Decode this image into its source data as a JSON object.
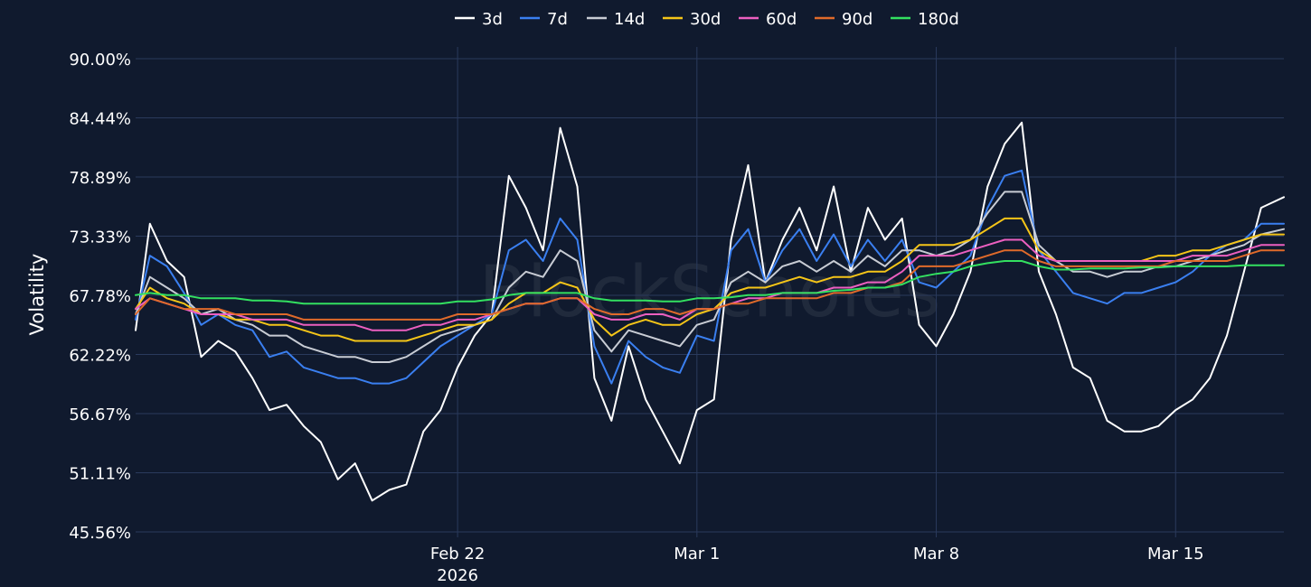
{
  "legend": [
    "3d",
    "7d",
    "14d",
    "30d",
    "60d",
    "90d",
    "180d"
  ],
  "watermark": "BlockScholes",
  "chart_data": {
    "type": "line",
    "xlabel": "",
    "ylabel": "Volatility",
    "x_axis_type": "date",
    "xlim": [
      "2026-02-12 14:00",
      "2026-03-18 04:00"
    ],
    "ylim": [
      45.56,
      90.0
    ],
    "y_ticks": [
      "45.56%",
      "51.11%",
      "56.67%",
      "62.22%",
      "67.78%",
      "73.33%",
      "78.89%",
      "84.44%",
      "90.00%"
    ],
    "y_tick_values": [
      45.56,
      51.11,
      56.67,
      62.22,
      67.78,
      73.33,
      78.89,
      84.44,
      90.0
    ],
    "x_ticks": [
      {
        "date": "2026-02-22",
        "label": "Feb 22",
        "sublabel": "2026"
      },
      {
        "date": "2026-03-01",
        "label": "Mar 1",
        "sublabel": ""
      },
      {
        "date": "2026-03-08",
        "label": "Mar 8",
        "sublabel": ""
      },
      {
        "date": "2026-03-15",
        "label": "Mar 15",
        "sublabel": ""
      }
    ],
    "grid": true,
    "legend_position": "top-center",
    "x": [
      "2026-02-12 14:00",
      "2026-02-13 00:00",
      "2026-02-13 12:00",
      "2026-02-14 00:00",
      "2026-02-14 12:00",
      "2026-02-15 00:00",
      "2026-02-15 12:00",
      "2026-02-16 00:00",
      "2026-02-16 12:00",
      "2026-02-17 00:00",
      "2026-02-17 12:00",
      "2026-02-18 00:00",
      "2026-02-18 12:00",
      "2026-02-19 00:00",
      "2026-02-19 12:00",
      "2026-02-20 00:00",
      "2026-02-20 12:00",
      "2026-02-21 00:00",
      "2026-02-21 12:00",
      "2026-02-22 00:00",
      "2026-02-22 12:00",
      "2026-02-23 00:00",
      "2026-02-23 12:00",
      "2026-02-24 00:00",
      "2026-02-24 12:00",
      "2026-02-25 00:00",
      "2026-02-25 12:00",
      "2026-02-26 00:00",
      "2026-02-26 12:00",
      "2026-02-27 00:00",
      "2026-02-27 12:00",
      "2026-02-28 00:00",
      "2026-02-28 12:00",
      "2026-03-01 00:00",
      "2026-03-01 12:00",
      "2026-03-02 00:00",
      "2026-03-02 12:00",
      "2026-03-03 00:00",
      "2026-03-03 12:00",
      "2026-03-04 00:00",
      "2026-03-04 12:00",
      "2026-03-05 00:00",
      "2026-03-05 12:00",
      "2026-03-06 00:00",
      "2026-03-06 12:00",
      "2026-03-07 00:00",
      "2026-03-07 12:00",
      "2026-03-08 00:00",
      "2026-03-08 12:00",
      "2026-03-09 00:00",
      "2026-03-09 12:00",
      "2026-03-10 00:00",
      "2026-03-10 12:00",
      "2026-03-11 00:00",
      "2026-03-11 12:00",
      "2026-03-12 00:00",
      "2026-03-12 12:00",
      "2026-03-13 00:00",
      "2026-03-13 12:00",
      "2026-03-14 00:00",
      "2026-03-14 12:00",
      "2026-03-15 00:00",
      "2026-03-15 12:00",
      "2026-03-16 00:00",
      "2026-03-16 12:00",
      "2026-03-17 00:00",
      "2026-03-17 12:00",
      "2026-03-18 04:00"
    ],
    "series": [
      {
        "name": "3d",
        "color": "#ffffff",
        "values": [
          64.5,
          74.5,
          71.0,
          69.5,
          62.0,
          63.5,
          62.5,
          60.0,
          57.0,
          57.5,
          55.5,
          54.0,
          50.5,
          52.0,
          48.5,
          49.5,
          50.0,
          55.0,
          57.0,
          61.0,
          64.0,
          66.0,
          79.0,
          76.0,
          72.0,
          83.5,
          78.0,
          60.0,
          56.0,
          63.0,
          58.0,
          55.0,
          52.0,
          57.0,
          58.0,
          73.0,
          80.0,
          69.0,
          73.0,
          76.0,
          72.0,
          78.0,
          70.0,
          76.0,
          73.0,
          75.0,
          65.0,
          63.0,
          66.0,
          70.0,
          78.0,
          82.0,
          84.0,
          70.0,
          66.0,
          61.0,
          60.0,
          56.0,
          55.0,
          55.0,
          55.5,
          57.0,
          58.0,
          60.0,
          64.0,
          70.0,
          76.0,
          77.0
        ]
      },
      {
        "name": "7d",
        "color": "#3a7ff0",
        "values": [
          65.5,
          71.5,
          70.5,
          68.0,
          65.0,
          66.0,
          65.0,
          64.5,
          62.0,
          62.5,
          61.0,
          60.5,
          60.0,
          60.0,
          59.5,
          59.5,
          60.0,
          61.5,
          63.0,
          64.0,
          65.0,
          66.0,
          72.0,
          73.0,
          71.0,
          75.0,
          73.0,
          63.0,
          59.5,
          63.5,
          62.0,
          61.0,
          60.5,
          64.0,
          63.5,
          72.0,
          74.0,
          69.0,
          72.0,
          74.0,
          71.0,
          73.5,
          70.5,
          73.0,
          71.0,
          73.0,
          69.0,
          68.5,
          70.0,
          71.5,
          76.0,
          79.0,
          79.5,
          72.0,
          70.0,
          68.0,
          67.5,
          67.0,
          68.0,
          68.0,
          68.5,
          69.0,
          70.0,
          71.5,
          72.5,
          73.0,
          74.5,
          74.5
        ]
      },
      {
        "name": "14d",
        "color": "#c8ccd4",
        "values": [
          66.0,
          69.5,
          68.5,
          67.5,
          66.0,
          66.5,
          65.5,
          65.0,
          64.0,
          64.0,
          63.0,
          62.5,
          62.0,
          62.0,
          61.5,
          61.5,
          62.0,
          63.0,
          64.0,
          64.5,
          65.0,
          65.5,
          68.5,
          70.0,
          69.5,
          72.0,
          71.0,
          64.5,
          62.5,
          64.5,
          64.0,
          63.5,
          63.0,
          65.0,
          65.5,
          69.0,
          70.0,
          69.0,
          70.5,
          71.0,
          70.0,
          71.0,
          70.0,
          71.5,
          70.5,
          72.0,
          72.0,
          71.5,
          72.0,
          73.0,
          75.5,
          77.5,
          77.5,
          72.5,
          71.0,
          70.0,
          70.0,
          69.5,
          70.0,
          70.0,
          70.5,
          70.5,
          71.0,
          71.5,
          72.0,
          72.5,
          73.5,
          74.0
        ]
      },
      {
        "name": "30d",
        "color": "#f5c518",
        "values": [
          66.5,
          68.5,
          67.5,
          67.0,
          66.0,
          66.0,
          65.5,
          65.5,
          65.0,
          65.0,
          64.5,
          64.0,
          64.0,
          63.5,
          63.5,
          63.5,
          63.5,
          64.0,
          64.5,
          65.0,
          65.0,
          65.5,
          67.0,
          68.0,
          68.0,
          69.0,
          68.5,
          65.5,
          64.0,
          65.0,
          65.5,
          65.0,
          65.0,
          66.0,
          66.5,
          68.0,
          68.5,
          68.5,
          69.0,
          69.5,
          69.0,
          69.5,
          69.5,
          70.0,
          70.0,
          71.0,
          72.5,
          72.5,
          72.5,
          73.0,
          74.0,
          75.0,
          75.0,
          72.0,
          71.0,
          71.0,
          71.0,
          71.0,
          71.0,
          71.0,
          71.5,
          71.5,
          72.0,
          72.0,
          72.5,
          73.0,
          73.5,
          73.5
        ]
      },
      {
        "name": "60d",
        "color": "#ec5fc0",
        "values": [
          66.5,
          67.5,
          67.0,
          66.5,
          66.0,
          66.0,
          66.0,
          65.5,
          65.5,
          65.5,
          65.0,
          65.0,
          65.0,
          65.0,
          64.5,
          64.5,
          64.5,
          65.0,
          65.0,
          65.5,
          65.5,
          66.0,
          66.5,
          67.0,
          67.0,
          67.5,
          67.5,
          66.0,
          65.5,
          65.5,
          66.0,
          66.0,
          65.5,
          66.5,
          66.5,
          67.0,
          67.5,
          67.5,
          68.0,
          68.0,
          68.0,
          68.5,
          68.5,
          69.0,
          69.0,
          70.0,
          71.5,
          71.5,
          71.5,
          72.0,
          72.5,
          73.0,
          73.0,
          71.5,
          71.0,
          71.0,
          71.0,
          71.0,
          71.0,
          71.0,
          71.0,
          71.0,
          71.5,
          71.5,
          71.5,
          72.0,
          72.5,
          72.5
        ]
      },
      {
        "name": "90d",
        "color": "#e06a2a",
        "values": [
          66.0,
          67.5,
          67.0,
          66.5,
          66.5,
          66.5,
          66.0,
          66.0,
          66.0,
          66.0,
          65.5,
          65.5,
          65.5,
          65.5,
          65.5,
          65.5,
          65.5,
          65.5,
          65.5,
          66.0,
          66.0,
          66.0,
          66.5,
          67.0,
          67.0,
          67.5,
          67.5,
          66.5,
          66.0,
          66.0,
          66.5,
          66.5,
          66.0,
          66.5,
          66.5,
          67.0,
          67.0,
          67.5,
          67.5,
          67.5,
          67.5,
          68.0,
          68.0,
          68.5,
          68.5,
          69.0,
          70.5,
          70.5,
          70.5,
          71.0,
          71.5,
          72.0,
          72.0,
          71.0,
          70.5,
          70.5,
          70.5,
          70.5,
          70.5,
          70.5,
          70.5,
          71.0,
          71.0,
          71.0,
          71.0,
          71.5,
          72.0,
          72.0
        ]
      },
      {
        "name": "180d",
        "color": "#33e060",
        "values": [
          67.8,
          68.0,
          67.8,
          67.8,
          67.5,
          67.5,
          67.5,
          67.3,
          67.3,
          67.2,
          67.0,
          67.0,
          67.0,
          67.0,
          67.0,
          67.0,
          67.0,
          67.0,
          67.0,
          67.2,
          67.2,
          67.4,
          67.8,
          68.0,
          68.0,
          68.0,
          68.0,
          67.5,
          67.3,
          67.3,
          67.3,
          67.2,
          67.2,
          67.5,
          67.5,
          67.6,
          67.8,
          67.8,
          68.0,
          68.0,
          68.0,
          68.2,
          68.3,
          68.5,
          68.5,
          68.8,
          69.5,
          69.8,
          70.0,
          70.5,
          70.8,
          71.0,
          71.0,
          70.5,
          70.2,
          70.2,
          70.3,
          70.3,
          70.3,
          70.4,
          70.4,
          70.5,
          70.5,
          70.5,
          70.5,
          70.6,
          70.6,
          70.6
        ]
      }
    ]
  }
}
